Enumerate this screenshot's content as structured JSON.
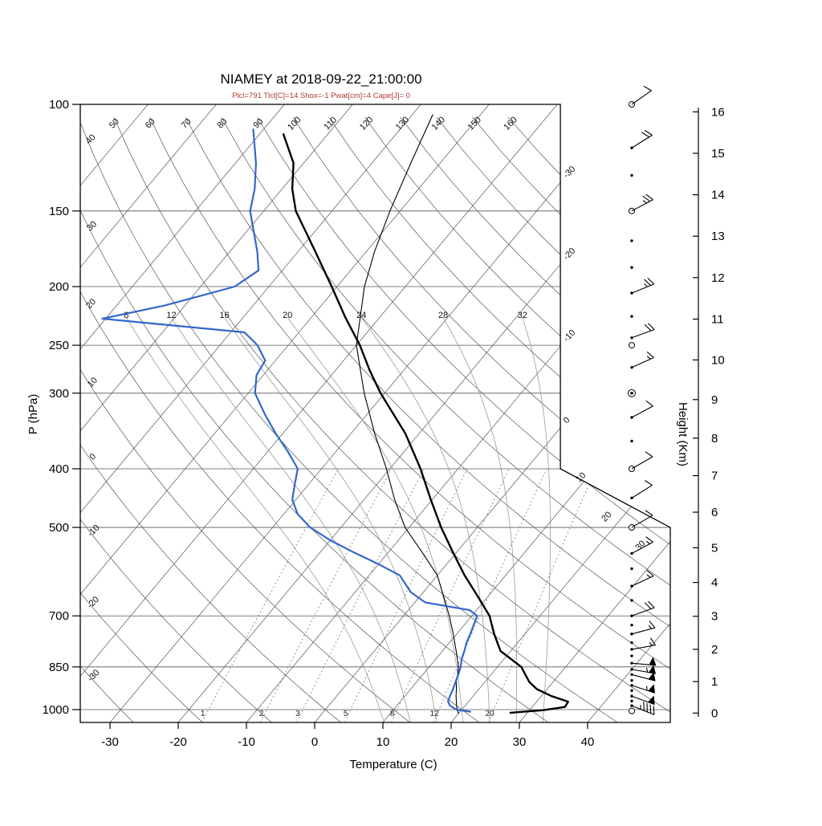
{
  "title": "NIAMEY at 2018-09-22_21:00:00",
  "subtitle": "Plcl=791 Tlcl[C]=14 Shox=-1 Pwat[cm]=4 Cape[J]= 0",
  "station": "NIAMEY",
  "datetime": "2018-09-22_21:00:00",
  "indices": {
    "Plcl": 791,
    "Tlcl_C": 14,
    "Shox": -1,
    "Pwat_cm": 4,
    "Cape_J": 0
  },
  "colors": {
    "temperature": "#000000",
    "secondary": "#000000",
    "dewpoint": "#3366cc",
    "subtitle": "#b03a2e",
    "grid": "#555555",
    "moist_adiabat": "#999999",
    "mixing_ratio": "#777777"
  },
  "axes": {
    "pressure": {
      "label": "P (hPa)",
      "ticks": [
        100,
        150,
        200,
        250,
        300,
        400,
        500,
        700,
        850,
        1000
      ],
      "range": [
        100,
        1050
      ]
    },
    "temperature": {
      "label": "Temperature (C)",
      "ticks": [
        -30,
        -20,
        -10,
        0,
        10,
        20,
        30,
        40
      ]
    },
    "height": {
      "label": "Height (Km)",
      "ticks": [
        0,
        1,
        2,
        3,
        4,
        5,
        6,
        7,
        8,
        9,
        10,
        11,
        12,
        13,
        14,
        15,
        16
      ]
    }
  },
  "background": {
    "dry_adiabat_top_labels": [
      50,
      60,
      70,
      80,
      90,
      100,
      110,
      120,
      130,
      140,
      150,
      160
    ],
    "dry_adiabat_left_labels": [
      40,
      30,
      20,
      10,
      0,
      -10,
      -20,
      -30
    ],
    "isotherm_right_labels": [
      -30,
      -20,
      -10,
      0,
      10,
      20,
      30
    ],
    "moist_adiabat_labels": [
      8,
      12,
      16,
      20,
      24,
      28,
      32
    ],
    "mixing_ratio_labels": [
      1,
      2,
      3,
      5,
      8,
      12,
      20
    ]
  },
  "chart_data": {
    "type": "line",
    "variant": "skew-t-log-p-sounding",
    "title": "NIAMEY at 2018-09-22_21:00:00",
    "xlabel": "Temperature (C)",
    "ylabel": "P (hPa)",
    "pressure_range_hPa": [
      100,
      1050
    ],
    "temperature_profile": [
      [
        1012,
        27.5
      ],
      [
        1002,
        32.0
      ],
      [
        990,
        34.8
      ],
      [
        970,
        34.6
      ],
      [
        950,
        31.5
      ],
      [
        925,
        28.5
      ],
      [
        900,
        26.5
      ],
      [
        850,
        23.5
      ],
      [
        800,
        18.5
      ],
      [
        750,
        15.5
      ],
      [
        700,
        12.6
      ],
      [
        650,
        8.5
      ],
      [
        600,
        4.0
      ],
      [
        550,
        -0.5
      ],
      [
        500,
        -5.3
      ],
      [
        450,
        -10.2
      ],
      [
        400,
        -15.5
      ],
      [
        350,
        -22.0
      ],
      [
        300,
        -30.6
      ],
      [
        275,
        -35.0
      ],
      [
        250,
        -39.5
      ],
      [
        225,
        -45.0
      ],
      [
        200,
        -50.8
      ],
      [
        175,
        -57.5
      ],
      [
        150,
        -65.3
      ],
      [
        138,
        -68.5
      ],
      [
        125,
        -71.5
      ],
      [
        112,
        -76.5
      ]
    ],
    "dewpoint_profile": [
      [
        1008,
        21.5
      ],
      [
        1000,
        19.2
      ],
      [
        985,
        17.8
      ],
      [
        970,
        17.0
      ],
      [
        950,
        16.6
      ],
      [
        925,
        16.2
      ],
      [
        900,
        15.7
      ],
      [
        875,
        15.2
      ],
      [
        850,
        14.6
      ],
      [
        825,
        13.8
      ],
      [
        800,
        13.2
      ],
      [
        775,
        12.5
      ],
      [
        750,
        12.0
      ],
      [
        725,
        11.4
      ],
      [
        700,
        10.8
      ],
      [
        685,
        9.0
      ],
      [
        665,
        1.5
      ],
      [
        640,
        -1.8
      ],
      [
        600,
        -5.5
      ],
      [
        575,
        -10.0
      ],
      [
        550,
        -15.0
      ],
      [
        525,
        -20.0
      ],
      [
        500,
        -24.5
      ],
      [
        475,
        -28.0
      ],
      [
        450,
        -30.5
      ],
      [
        425,
        -32.0
      ],
      [
        400,
        -33.5
      ],
      [
        375,
        -37.0
      ],
      [
        350,
        -41.0
      ],
      [
        325,
        -45.0
      ],
      [
        300,
        -49.0
      ],
      [
        280,
        -51.0
      ],
      [
        265,
        -51.5
      ],
      [
        250,
        -54.5
      ],
      [
        238,
        -58.0
      ],
      [
        226,
        -80.5
      ],
      [
        215,
        -73.0
      ],
      [
        200,
        -65.0
      ],
      [
        188,
        -63.5
      ],
      [
        175,
        -66.0
      ],
      [
        162,
        -69.0
      ],
      [
        150,
        -72.0
      ],
      [
        138,
        -74.0
      ],
      [
        125,
        -77.0
      ],
      [
        110,
        -81.5
      ]
    ],
    "secondary_profile": [
      [
        1015,
        20.0
      ],
      [
        1000,
        19.3
      ],
      [
        975,
        18.4
      ],
      [
        950,
        17.5
      ],
      [
        925,
        16.7
      ],
      [
        900,
        15.8
      ],
      [
        875,
        15.1
      ],
      [
        850,
        14.3
      ],
      [
        800,
        12.0
      ],
      [
        750,
        9.5
      ],
      [
        700,
        6.7
      ],
      [
        650,
        3.5
      ],
      [
        600,
        0.0
      ],
      [
        550,
        -5.0
      ],
      [
        500,
        -10.6
      ],
      [
        450,
        -15.5
      ],
      [
        400,
        -20.5
      ],
      [
        350,
        -26.5
      ],
      [
        300,
        -33.0
      ],
      [
        250,
        -40.0
      ],
      [
        200,
        -46.0
      ],
      [
        175,
        -48.8
      ],
      [
        150,
        -51.5
      ],
      [
        125,
        -54.3
      ],
      [
        104,
        -57.0
      ]
    ],
    "winds": [
      {
        "p": 100,
        "marker": "circle",
        "barb": true,
        "spd": 10,
        "dir": 55
      },
      {
        "p": 118,
        "marker": "dot",
        "barb": true,
        "spd": 20,
        "dir": 58
      },
      {
        "p": 131,
        "marker": "dot",
        "barb": false
      },
      {
        "p": 150,
        "marker": "circle",
        "barb": true,
        "spd": 25,
        "dir": 62
      },
      {
        "p": 168,
        "marker": "dot",
        "barb": false
      },
      {
        "p": 186,
        "marker": "dot",
        "barb": false
      },
      {
        "p": 205,
        "marker": "dot",
        "barb": true,
        "spd": 25,
        "dir": 68
      },
      {
        "p": 224,
        "marker": "dot",
        "barb": false
      },
      {
        "p": 243,
        "marker": "dot",
        "barb": true,
        "spd": 20,
        "dir": 70
      },
      {
        "p": 250,
        "marker": "circle",
        "barb": false
      },
      {
        "p": 272,
        "marker": "dot",
        "barb": true,
        "spd": 15,
        "dir": 66
      },
      {
        "p": 300,
        "marker": "dcircle",
        "barb": false
      },
      {
        "p": 329,
        "marker": "dot",
        "barb": true,
        "spd": 10,
        "dir": 62
      },
      {
        "p": 360,
        "marker": "dot",
        "barb": false
      },
      {
        "p": 400,
        "marker": "circle",
        "barb": true,
        "spd": 10,
        "dir": 60
      },
      {
        "p": 447,
        "marker": "dot",
        "barb": true,
        "spd": 10,
        "dir": 58
      },
      {
        "p": 500,
        "marker": "circle",
        "barb": true,
        "spd": 10,
        "dir": 60
      },
      {
        "p": 552,
        "marker": "dot",
        "barb": true,
        "spd": 15,
        "dir": 62
      },
      {
        "p": 585,
        "marker": "dot",
        "barb": false
      },
      {
        "p": 625,
        "marker": "dot",
        "barb": true,
        "spd": 15,
        "dir": 65
      },
      {
        "p": 660,
        "marker": "dot",
        "barb": false
      },
      {
        "p": 700,
        "marker": "dot",
        "barb": true,
        "spd": 20,
        "dir": 70
      },
      {
        "p": 725,
        "marker": "dot",
        "barb": false
      },
      {
        "p": 750,
        "marker": "dot",
        "barb": true,
        "spd": 15,
        "dir": 75
      },
      {
        "p": 775,
        "marker": "dot",
        "barb": false
      },
      {
        "p": 795,
        "marker": "dot",
        "barb": true,
        "spd": 15,
        "dir": 80
      },
      {
        "p": 815,
        "marker": "dot",
        "barb": false
      },
      {
        "p": 838,
        "marker": "dot",
        "barb": true,
        "spd": 50,
        "dir": 95
      },
      {
        "p": 858,
        "marker": "dot",
        "barb": true,
        "spd": 55,
        "dir": 100
      },
      {
        "p": 875,
        "marker": "dot",
        "barb": true,
        "spd": 50,
        "dir": 105
      },
      {
        "p": 895,
        "marker": "dot",
        "barb": false
      },
      {
        "p": 912,
        "marker": "dot",
        "barb": true,
        "spd": 55,
        "dir": 108
      },
      {
        "p": 930,
        "marker": "dot",
        "barb": false
      },
      {
        "p": 950,
        "marker": "dot",
        "barb": true,
        "spd": 50,
        "dir": 110
      },
      {
        "p": 968,
        "marker": "dot",
        "barb": false
      },
      {
        "p": 985,
        "marker": "dot",
        "barb": true,
        "spd": 45,
        "dir": 112
      },
      {
        "p": 1005,
        "marker": "circle",
        "barb": false
      }
    ]
  }
}
